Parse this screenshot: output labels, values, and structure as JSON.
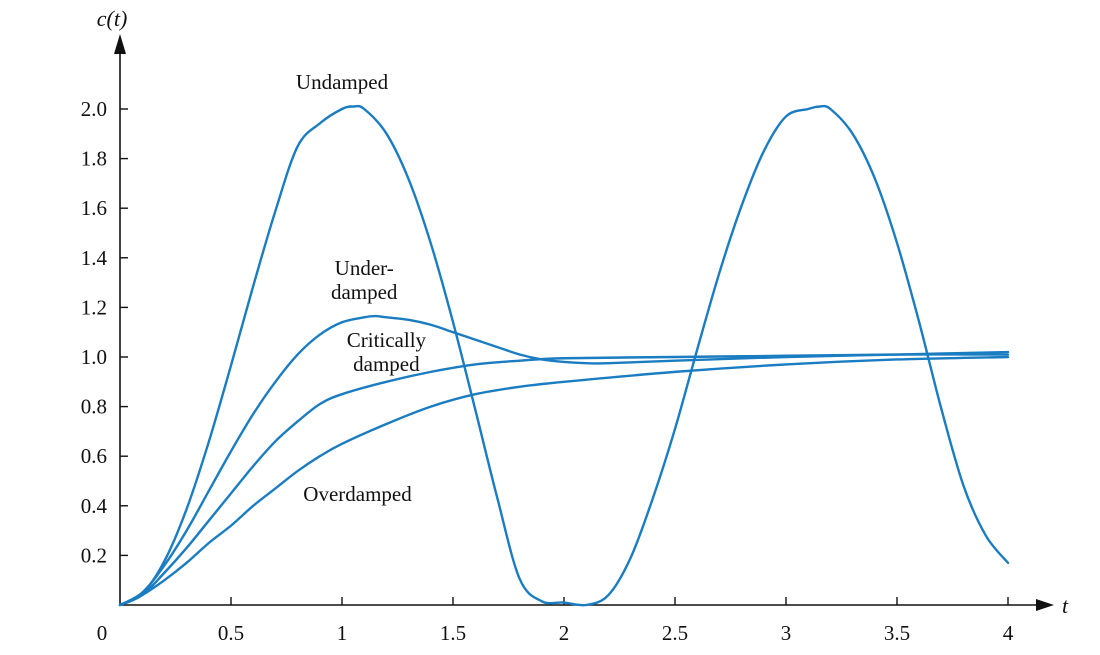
{
  "chart_data": {
    "type": "line",
    "title": "",
    "xlabel": "t",
    "ylabel": "c(t)",
    "xlim": [
      0,
      4
    ],
    "ylim": [
      0,
      2.2
    ],
    "x_ticks": [
      0.5,
      1,
      1.5,
      2,
      2.5,
      3,
      3.5,
      4
    ],
    "x_tick_labels": [
      "0.5",
      "1",
      "1.5",
      "2",
      "2.5",
      "3",
      "3.5",
      "4"
    ],
    "origin_label": "0",
    "y_ticks": [
      0.2,
      0.4,
      0.6,
      0.8,
      1.0,
      1.2,
      1.4,
      1.6,
      1.8,
      2.0
    ],
    "y_tick_labels": [
      "0.2",
      "0.4",
      "0.6",
      "0.8",
      "1.0",
      "1.2",
      "1.4",
      "1.6",
      "1.8",
      "2.0"
    ],
    "grid": false,
    "legend": "none",
    "line_color": "#1a7cc1",
    "series": [
      {
        "key": "undamped",
        "x": [
          0,
          0.1,
          0.2,
          0.3,
          0.4,
          0.5,
          0.6,
          0.7,
          0.8,
          0.9,
          1.0,
          1.05,
          1.1,
          1.2,
          1.3,
          1.4,
          1.5,
          1.6,
          1.7,
          1.8,
          1.9,
          2.0,
          2.1,
          2.2,
          2.3,
          2.4,
          2.5,
          2.6,
          2.7,
          2.8,
          2.9,
          3.0,
          3.1,
          3.15,
          3.2,
          3.3,
          3.4,
          3.5,
          3.6,
          3.7,
          3.8,
          3.9,
          4.0
        ],
        "y": [
          0,
          0.045,
          0.177,
          0.387,
          0.658,
          0.966,
          1.286,
          1.589,
          1.849,
          1.942,
          2.0,
          2.01,
          2.0,
          1.901,
          1.717,
          1.458,
          1.141,
          0.789,
          0.43,
          0.106,
          0.015,
          0.01,
          0.0,
          0.04,
          0.19,
          0.43,
          0.71,
          1.03,
          1.34,
          1.61,
          1.83,
          1.97,
          2.0,
          2.01,
          2.0,
          1.9,
          1.72,
          1.46,
          1.14,
          0.79,
          0.48,
          0.28,
          0.17
        ]
      },
      {
        "key": "underdamped",
        "x": [
          0,
          0.1,
          0.2,
          0.3,
          0.4,
          0.5,
          0.6,
          0.7,
          0.8,
          0.9,
          1.0,
          1.1,
          1.15,
          1.2,
          1.3,
          1.4,
          1.5,
          1.6,
          1.7,
          1.8,
          1.9,
          2.0,
          2.1,
          2.2,
          2.5,
          3.0,
          3.5,
          4.0
        ],
        "y": [
          0,
          0.05,
          0.16,
          0.3,
          0.46,
          0.62,
          0.77,
          0.9,
          1.01,
          1.09,
          1.14,
          1.16,
          1.165,
          1.16,
          1.15,
          1.13,
          1.1,
          1.07,
          1.04,
          1.01,
          0.99,
          0.98,
          0.975,
          0.975,
          0.985,
          1.0,
          1.01,
          1.02
        ]
      },
      {
        "key": "critically-damped",
        "x": [
          0,
          0.1,
          0.2,
          0.3,
          0.4,
          0.5,
          0.6,
          0.7,
          0.8,
          0.9,
          1.0,
          1.2,
          1.4,
          1.6,
          1.8,
          2.0,
          2.5,
          3.0,
          3.5,
          4.0
        ],
        "y": [
          0,
          0.04,
          0.13,
          0.23,
          0.34,
          0.45,
          0.56,
          0.66,
          0.74,
          0.81,
          0.85,
          0.9,
          0.94,
          0.97,
          0.985,
          0.995,
          1.0,
          1.005,
          1.01,
          1.01
        ]
      },
      {
        "key": "overdamped",
        "x": [
          0,
          0.1,
          0.2,
          0.3,
          0.4,
          0.5,
          0.6,
          0.7,
          0.8,
          0.9,
          1.0,
          1.2,
          1.4,
          1.6,
          1.8,
          2.0,
          2.5,
          3.0,
          3.5,
          4.0
        ],
        "y": [
          0,
          0.04,
          0.1,
          0.17,
          0.25,
          0.32,
          0.4,
          0.47,
          0.54,
          0.6,
          0.65,
          0.73,
          0.8,
          0.85,
          0.88,
          0.9,
          0.94,
          0.97,
          0.99,
          1.0
        ]
      }
    ],
    "annotations": [
      {
        "key": "undamped",
        "lines": [
          "Undamped"
        ],
        "x": 1.0,
        "y": 2.08
      },
      {
        "key": "underdamped",
        "lines": [
          "Under-",
          "damped"
        ],
        "x": 1.1,
        "y": 1.33
      },
      {
        "key": "critically",
        "lines": [
          "Critically",
          "damped"
        ],
        "x": 1.2,
        "y": 1.04
      },
      {
        "key": "overdamped",
        "lines": [
          "Overdamped"
        ],
        "x": 1.07,
        "y": 0.42
      }
    ]
  }
}
